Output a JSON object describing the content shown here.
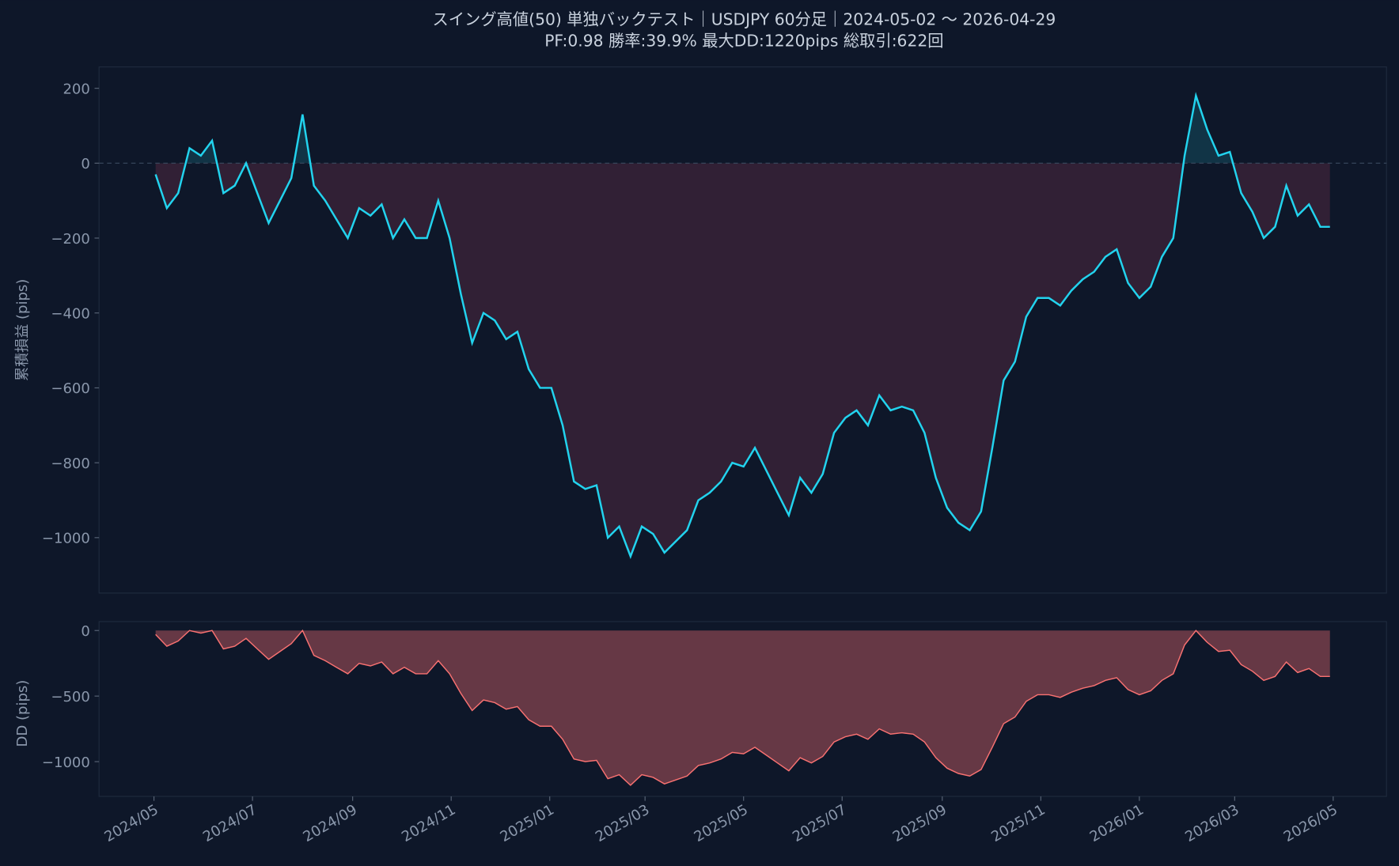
{
  "chart_data": [
    {
      "type": "line",
      "title": "スイング高値(50) 単独バックテスト｜USDJPY 60分足｜2024-05-02 〜 2026-04-29",
      "subtitle": "PF:0.98  勝率:39.9%  最大DD:1220pips  総取引:622回",
      "ylabel": "累積損益 (pips)",
      "color": "#22d3ee",
      "fill_below_color": "#3b2338",
      "fill_above_color": "#14485a",
      "xlim": [
        "2024-03-28",
        "2026-06-03"
      ],
      "ylim": [
        -1148,
        257
      ],
      "yticks": [
        {
          "value": 200,
          "label": "200"
        },
        {
          "value": 0,
          "label": "0"
        },
        {
          "value": -200,
          "label": "−200"
        },
        {
          "value": -400,
          "label": "−400"
        },
        {
          "value": -600,
          "label": "−600"
        },
        {
          "value": -800,
          "label": "−800"
        },
        {
          "value": -1000,
          "label": "−1000"
        }
      ],
      "x": [
        "2024-05-02",
        "2024-05-09",
        "2024-05-16",
        "2024-05-23",
        "2024-05-30",
        "2024-06-06",
        "2024-06-13",
        "2024-06-20",
        "2024-06-27",
        "2024-07-04",
        "2024-07-11",
        "2024-07-18",
        "2024-07-25",
        "2024-08-01",
        "2024-08-08",
        "2024-08-15",
        "2024-08-22",
        "2024-08-29",
        "2024-09-05",
        "2024-09-12",
        "2024-09-19",
        "2024-09-26",
        "2024-10-03",
        "2024-10-10",
        "2024-10-17",
        "2024-10-24",
        "2024-10-31",
        "2024-11-07",
        "2024-11-14",
        "2024-11-21",
        "2024-11-28",
        "2024-12-05",
        "2024-12-12",
        "2024-12-19",
        "2024-12-26",
        "2025-01-02",
        "2025-01-09",
        "2025-01-16",
        "2025-01-23",
        "2025-01-30",
        "2025-02-06",
        "2025-02-13",
        "2025-02-20",
        "2025-02-27",
        "2025-03-06",
        "2025-03-13",
        "2025-03-20",
        "2025-03-27",
        "2025-04-03",
        "2025-04-10",
        "2025-04-17",
        "2025-04-24",
        "2025-05-01",
        "2025-05-08",
        "2025-05-15",
        "2025-05-22",
        "2025-05-29",
        "2025-06-05",
        "2025-06-12",
        "2025-06-19",
        "2025-06-26",
        "2025-07-03",
        "2025-07-10",
        "2025-07-17",
        "2025-07-24",
        "2025-07-31",
        "2025-08-07",
        "2025-08-14",
        "2025-08-21",
        "2025-08-28",
        "2025-09-04",
        "2025-09-11",
        "2025-09-18",
        "2025-09-25",
        "2025-10-02",
        "2025-10-09",
        "2025-10-16",
        "2025-10-23",
        "2025-10-30",
        "2025-11-06",
        "2025-11-13",
        "2025-11-20",
        "2025-11-27",
        "2025-12-04",
        "2025-12-11",
        "2025-12-18",
        "2025-12-25",
        "2026-01-01",
        "2026-01-08",
        "2026-01-15",
        "2026-01-22",
        "2026-01-29",
        "2026-02-05",
        "2026-02-12",
        "2026-02-19",
        "2026-02-26",
        "2026-03-05",
        "2026-03-12",
        "2026-03-19",
        "2026-03-26",
        "2026-04-02",
        "2026-04-09",
        "2026-04-16",
        "2026-04-23",
        "2026-04-29"
      ],
      "values": [
        -30,
        -120,
        -80,
        40,
        20,
        60,
        -80,
        -60,
        0,
        -80,
        -160,
        -100,
        -40,
        130,
        -60,
        -100,
        -150,
        -200,
        -120,
        -140,
        -110,
        -200,
        -150,
        -200,
        -200,
        -100,
        -200,
        -350,
        -480,
        -400,
        -420,
        -470,
        -450,
        -550,
        -600,
        -600,
        -700,
        -850,
        -870,
        -860,
        -1000,
        -970,
        -1050,
        -970,
        -990,
        -1040,
        -1010,
        -980,
        -900,
        -880,
        -850,
        -800,
        -810,
        -760,
        -820,
        -880,
        -940,
        -840,
        -880,
        -830,
        -720,
        -680,
        -660,
        -700,
        -620,
        -660,
        -650,
        -660,
        -720,
        -840,
        -920,
        -960,
        -980,
        -930,
        -760,
        -580,
        -530,
        -410,
        -360,
        -360,
        -380,
        -340,
        -310,
        -290,
        -250,
        -230,
        -320,
        -360,
        -330,
        -250,
        -200,
        20,
        180,
        90,
        20,
        30,
        -80,
        -130,
        -200,
        -170,
        -60,
        -140,
        -110,
        -170,
        -170
      ]
    },
    {
      "type": "area",
      "ylabel": "DD (pips)",
      "color": "#f87171",
      "fill_color": "#6b3a47",
      "xlim": [
        "2024-03-28",
        "2026-06-03"
      ],
      "ylim": [
        -1265,
        68
      ],
      "yticks": [
        {
          "value": 0,
          "label": "0"
        },
        {
          "value": -500,
          "label": "−500"
        },
        {
          "value": -1000,
          "label": "−1000"
        }
      ],
      "xticks": [
        {
          "value": "2024-05-01",
          "label": "2024/05"
        },
        {
          "value": "2024-07-01",
          "label": "2024/07"
        },
        {
          "value": "2024-09-01",
          "label": "2024/09"
        },
        {
          "value": "2024-11-01",
          "label": "2024/11"
        },
        {
          "value": "2025-01-01",
          "label": "2025/01"
        },
        {
          "value": "2025-03-01",
          "label": "2025/03"
        },
        {
          "value": "2025-05-01",
          "label": "2025/05"
        },
        {
          "value": "2025-07-01",
          "label": "2025/07"
        },
        {
          "value": "2025-09-01",
          "label": "2025/09"
        },
        {
          "value": "2025-11-01",
          "label": "2025/11"
        },
        {
          "value": "2026-01-01",
          "label": "2026/01"
        },
        {
          "value": "2026-03-01",
          "label": "2026/03"
        },
        {
          "value": "2026-05-01",
          "label": "2026/05"
        }
      ],
      "x": [
        "2024-05-02",
        "2024-05-09",
        "2024-05-16",
        "2024-05-23",
        "2024-05-30",
        "2024-06-06",
        "2024-06-13",
        "2024-06-20",
        "2024-06-27",
        "2024-07-04",
        "2024-07-11",
        "2024-07-18",
        "2024-07-25",
        "2024-08-01",
        "2024-08-08",
        "2024-08-15",
        "2024-08-22",
        "2024-08-29",
        "2024-09-05",
        "2024-09-12",
        "2024-09-19",
        "2024-09-26",
        "2024-10-03",
        "2024-10-10",
        "2024-10-17",
        "2024-10-24",
        "2024-10-31",
        "2024-11-07",
        "2024-11-14",
        "2024-11-21",
        "2024-11-28",
        "2024-12-05",
        "2024-12-12",
        "2024-12-19",
        "2024-12-26",
        "2025-01-02",
        "2025-01-09",
        "2025-01-16",
        "2025-01-23",
        "2025-01-30",
        "2025-02-06",
        "2025-02-13",
        "2025-02-20",
        "2025-02-27",
        "2025-03-06",
        "2025-03-13",
        "2025-03-20",
        "2025-03-27",
        "2025-04-03",
        "2025-04-10",
        "2025-04-17",
        "2025-04-24",
        "2025-05-01",
        "2025-05-08",
        "2025-05-15",
        "2025-05-22",
        "2025-05-29",
        "2025-06-05",
        "2025-06-12",
        "2025-06-19",
        "2025-06-26",
        "2025-07-03",
        "2025-07-10",
        "2025-07-17",
        "2025-07-24",
        "2025-07-31",
        "2025-08-07",
        "2025-08-14",
        "2025-08-21",
        "2025-08-28",
        "2025-09-04",
        "2025-09-11",
        "2025-09-18",
        "2025-09-25",
        "2025-10-02",
        "2025-10-09",
        "2025-10-16",
        "2025-10-23",
        "2025-10-30",
        "2025-11-06",
        "2025-11-13",
        "2025-11-20",
        "2025-11-27",
        "2025-12-04",
        "2025-12-11",
        "2025-12-18",
        "2025-12-25",
        "2026-01-01",
        "2026-01-08",
        "2026-01-15",
        "2026-01-22",
        "2026-01-29",
        "2026-02-05",
        "2026-02-12",
        "2026-02-19",
        "2026-02-26",
        "2026-03-05",
        "2026-03-12",
        "2026-03-19",
        "2026-03-26",
        "2026-04-02",
        "2026-04-09",
        "2026-04-16",
        "2026-04-23",
        "2026-04-29"
      ],
      "values": [
        -30,
        -120,
        -80,
        0,
        -20,
        0,
        -140,
        -120,
        -60,
        -140,
        -220,
        -160,
        -100,
        0,
        -190,
        -230,
        -280,
        -330,
        -250,
        -270,
        -240,
        -330,
        -280,
        -330,
        -330,
        -230,
        -330,
        -480,
        -610,
        -530,
        -550,
        -600,
        -580,
        -680,
        -730,
        -730,
        -830,
        -980,
        -1000,
        -990,
        -1130,
        -1100,
        -1180,
        -1100,
        -1120,
        -1170,
        -1140,
        -1110,
        -1030,
        -1010,
        -980,
        -930,
        -940,
        -890,
        -950,
        -1010,
        -1070,
        -970,
        -1010,
        -960,
        -850,
        -810,
        -790,
        -830,
        -750,
        -790,
        -780,
        -790,
        -850,
        -970,
        -1050,
        -1090,
        -1110,
        -1060,
        -890,
        -710,
        -660,
        -540,
        -490,
        -490,
        -510,
        -470,
        -440,
        -420,
        -380,
        -360,
        -450,
        -490,
        -460,
        -380,
        -330,
        -110,
        0,
        -90,
        -160,
        -150,
        -260,
        -310,
        -380,
        -350,
        -240,
        -320,
        -290,
        -350,
        -350
      ]
    }
  ]
}
